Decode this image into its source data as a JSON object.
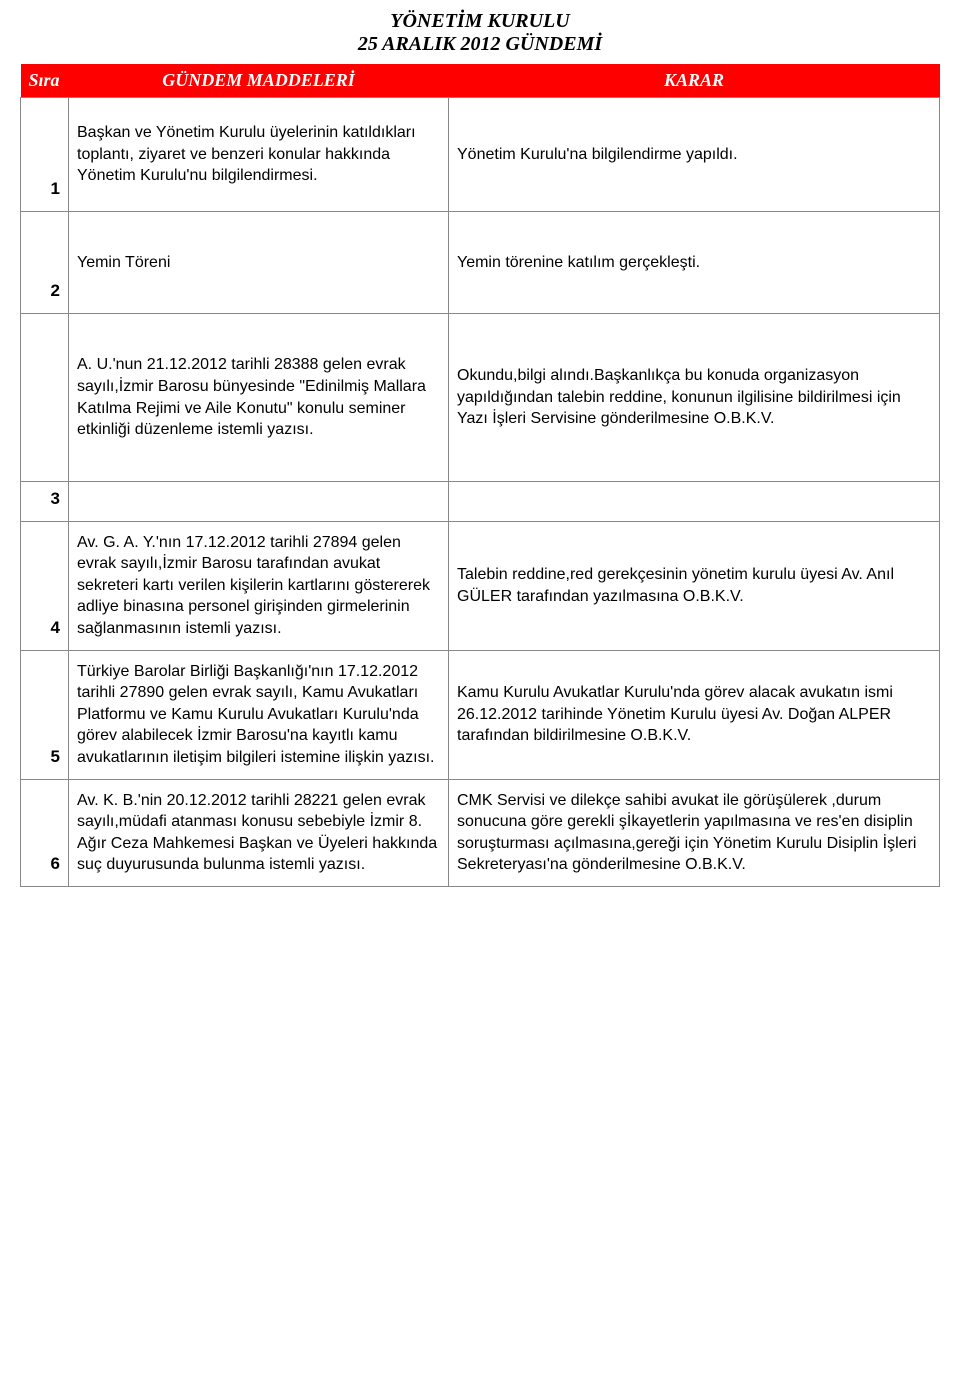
{
  "document": {
    "title_line1": "YÖNETİM KURULU",
    "title_line2": "25 ARALIK  2012 GÜNDEMİ"
  },
  "columns": {
    "sira": "Sıra",
    "madde": "GÜNDEM MADDELERİ",
    "karar": "KARAR"
  },
  "colors": {
    "header_bg": "#ff0000",
    "header_text": "#ffffff",
    "border": "#888888",
    "body_text": "#000000",
    "page_bg": "#ffffff"
  },
  "rows": [
    {
      "sira": "1",
      "madde": "Başkan ve Yönetim Kurulu üyelerinin katıldıkları toplantı, ziyaret ve benzeri konular hakkında Yönetim Kurulu'nu bilgilendirmesi.",
      "karar": "Yönetim Kurulu'na bilgilendirme yapıldı."
    },
    {
      "sira": "2",
      "madde": "Yemin Töreni",
      "karar": "Yemin törenine katılım gerçekleşti."
    },
    {
      "sira": "",
      "madde": "A. U.'nun 21.12.2012 tarihli 28388 gelen evrak sayılı,İzmir Barosu bünyesinde \"Edinilmiş Mallara Katılma Rejimi ve Aile Konutu\" konulu seminer etkinliği düzenleme istemli yazısı.",
      "karar": "Okundu,bilgi alındı.Başkanlıkça bu konuda organizasyon yapıldığından talebin reddine, konunun ilgilisine bildirilmesi için Yazı İşleri Servisine gönderilmesine O.B.K.V."
    },
    {
      "sira": "3",
      "madde": "",
      "karar": ""
    },
    {
      "sira": "4",
      "madde": "Av. G. A. Y.'nın 17.12.2012 tarihli 27894 gelen evrak sayılı,İzmir Barosu tarafından avukat sekreteri kartı verilen kişilerin kartlarını göstererek adliye binasına personel girişinden girmelerinin sağlanmasının istemli yazısı.",
      "karar": "Talebin reddine,red gerekçesinin  yönetim kurulu üyesi Av. Anıl GÜLER tarafından yazılmasına O.B.K.V."
    },
    {
      "sira": "5",
      "madde": "Türkiye Barolar Birliği Başkanlığı'nın 17.12.2012 tarihli 27890 gelen evrak sayılı, Kamu Avukatları Platformu ve Kamu Kurulu Avukatları Kurulu'nda görev alabilecek İzmir Barosu'na kayıtlı kamu avukatlarının iletişim bilgileri istemine ilişkin yazısı.",
      "karar": "Kamu Kurulu Avukatlar Kurulu'nda görev alacak avukatın ismi 26.12.2012 tarihinde Yönetim Kurulu üyesi Av. Doğan ALPER tarafından  bildirilmesine O.B.K.V."
    },
    {
      "sira": "6",
      "madde": "Av. K. B.'nin 20.12.2012 tarihli 28221 gelen evrak sayılı,müdafi atanması konusu sebebiyle İzmir 8. Ağır Ceza Mahkemesi Başkan ve Üyeleri hakkında suç duyurusunda bulunma istemli yazısı.",
      "karar": "CMK Servisi ve dilekçe sahibi avukat ile görüşülerek ,durum sonucuna göre gerekli şİkayetlerin yapılmasına ve res'en disiplin soruşturması açılmasına,gereği için Yönetim Kurulu Disiplin İşleri Sekreteryası'na gönderilmesine O.B.K.V."
    }
  ]
}
